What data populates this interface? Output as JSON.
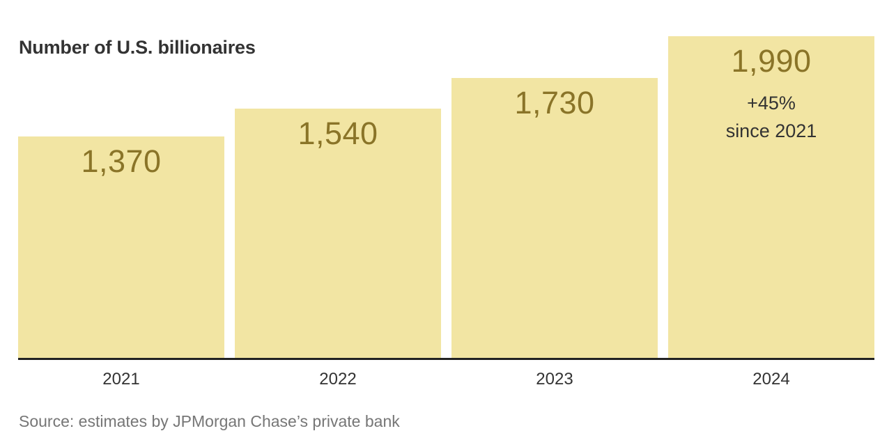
{
  "title": "Number of U.S. billionaires",
  "source": "Source: estimates by JPMorgan Chase’s private bank",
  "colors": {
    "background": "#ffffff",
    "bar_fill": "#F2E5A3",
    "value_label": "#8A7428",
    "text": "#333333",
    "axis_line": "#222222",
    "source_text": "#767676"
  },
  "chart_data": {
    "type": "bar",
    "title": "Number of U.S. billionaires",
    "categories": [
      "2021",
      "2022",
      "2023",
      "2024"
    ],
    "values": [
      1370,
      1540,
      1730,
      1990
    ],
    "value_labels": [
      "1,370",
      "1,540",
      "1,730",
      "1,990"
    ],
    "annotations": [
      {
        "bar_index": 3,
        "lines": [
          "+45%",
          "since 2021"
        ]
      }
    ],
    "xlabel": "",
    "ylabel": "",
    "ylim": [
      0,
      1990
    ],
    "grid": false,
    "legend": false,
    "value_label_position": "inside-top",
    "source": "Source: estimates by JPMorgan Chase’s private bank"
  }
}
